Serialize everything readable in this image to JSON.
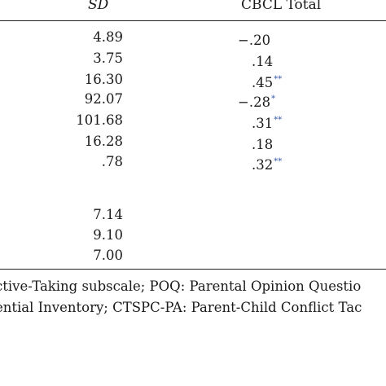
{
  "header": {
    "sd": "SD",
    "cbcl": "CBCL Total"
  },
  "rows": [
    {
      "sd": "4.89",
      "cbcl": "−.20",
      "sig": ""
    },
    {
      "sd": "3.75",
      "cbcl": ".14",
      "sig": ""
    },
    {
      "sd": "16.30",
      "cbcl": ".45",
      "sig": "**"
    },
    {
      "sd": "92.07",
      "cbcl": "−.28",
      "sig": "*"
    },
    {
      "sd": "101.68",
      "cbcl": ".31",
      "sig": "**"
    },
    {
      "sd": "16.28",
      "cbcl": ".18",
      "sig": ""
    },
    {
      "sd": ".78",
      "cbcl": ".32",
      "sig": "**"
    },
    {
      "sd": "",
      "cbcl": "",
      "sig": ""
    },
    {
      "sd": "7.14",
      "cbcl": "",
      "sig": ""
    },
    {
      "sd": "9.10",
      "cbcl": "",
      "sig": ""
    },
    {
      "sd": "7.00",
      "cbcl": "",
      "sig": ""
    }
  ],
  "notes": {
    "line1": "ctive-Taking subscale; POQ: Parental Opinion Questio",
    "line2": "ential Inventory; CTSPC-PA: Parent-Child Conflict Tac"
  }
}
